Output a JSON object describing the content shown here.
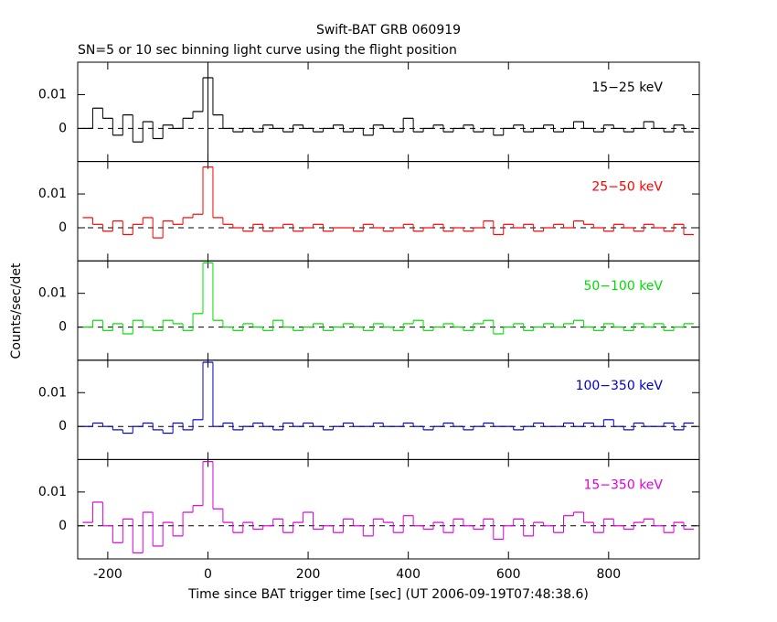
{
  "chart_data": {
    "type": "line",
    "title": "Swift-BAT GRB 060919",
    "subtitle": "SN=5 or 10 sec binning light curve using the flight position",
    "xlabel": "Time since BAT trigger time [sec] (UT 2006-09-19T07:48:38.6)",
    "ylabel": "Counts/sec/det",
    "xlim": [
      -260,
      981
    ],
    "xticks": [
      -200,
      0,
      200,
      400,
      600,
      800
    ],
    "ylim": [
      -0.0098,
      0.0196
    ],
    "yticks": [
      0,
      0.01
    ],
    "x": [
      -240,
      -220,
      -200,
      -180,
      -160,
      -140,
      -120,
      -100,
      -80,
      -60,
      -40,
      -20,
      0,
      20,
      40,
      60,
      80,
      100,
      120,
      140,
      160,
      180,
      200,
      220,
      240,
      260,
      280,
      300,
      320,
      340,
      360,
      380,
      400,
      420,
      440,
      460,
      480,
      500,
      520,
      540,
      560,
      580,
      600,
      620,
      640,
      660,
      680,
      700,
      720,
      740,
      760,
      780,
      800,
      820,
      840,
      860,
      880,
      900,
      920,
      940,
      960
    ],
    "series": [
      {
        "name": "15−25 keV",
        "color": "#000000",
        "values": [
          0.0,
          0.006,
          0.003,
          -0.002,
          0.004,
          -0.004,
          0.002,
          -0.003,
          0.001,
          0.0,
          0.003,
          0.005,
          0.015,
          0.004,
          0.0,
          -0.001,
          0.0,
          -0.001,
          0.001,
          0.0,
          -0.001,
          0.001,
          0.0,
          -0.001,
          0.0,
          0.001,
          -0.001,
          0.0,
          -0.002,
          0.001,
          0.0,
          -0.001,
          0.003,
          -0.001,
          0.0,
          0.001,
          -0.001,
          0.0,
          0.001,
          -0.001,
          0.0,
          -0.002,
          0.0,
          0.001,
          -0.001,
          0.0,
          0.001,
          -0.001,
          0.0,
          0.002,
          0.0,
          -0.001,
          0.001,
          0.0,
          -0.001,
          0.0,
          0.002,
          0.0,
          -0.001,
          0.001,
          -0.001
        ]
      },
      {
        "name": "25−50 keV",
        "color": "#ff0000",
        "values": [
          0.003,
          0.001,
          -0.001,
          0.002,
          -0.002,
          0.001,
          0.003,
          -0.003,
          0.002,
          0.001,
          0.003,
          0.004,
          0.018,
          0.003,
          0.001,
          0.0,
          -0.001,
          0.001,
          -0.001,
          0.0,
          0.001,
          -0.001,
          0.0,
          0.001,
          -0.001,
          0.0,
          0.0,
          -0.001,
          0.001,
          0.0,
          -0.001,
          0.0,
          0.001,
          -0.001,
          0.0,
          0.001,
          -0.001,
          0.0,
          -0.001,
          0.0,
          0.002,
          -0.002,
          0.001,
          0.0,
          0.001,
          -0.001,
          0.0,
          0.001,
          0.0,
          0.002,
          0.001,
          0.0,
          -0.001,
          0.001,
          0.0,
          -0.001,
          0.001,
          0.0,
          -0.001,
          0.001,
          -0.002
        ]
      },
      {
        "name": "50−100 keV",
        "color": "#00dd00",
        "values": [
          0.0,
          0.002,
          -0.001,
          0.001,
          -0.002,
          0.002,
          0.0,
          -0.001,
          0.002,
          0.001,
          -0.001,
          0.004,
          0.019,
          0.002,
          0.0,
          -0.001,
          0.001,
          0.0,
          -0.001,
          0.002,
          0.0,
          -0.001,
          0.0,
          0.001,
          -0.001,
          0.0,
          0.001,
          0.0,
          -0.001,
          0.001,
          0.0,
          -0.001,
          0.001,
          0.002,
          -0.001,
          0.0,
          0.001,
          0.0,
          -0.001,
          0.001,
          0.002,
          -0.002,
          0.0,
          0.001,
          -0.001,
          0.0,
          0.001,
          0.0,
          0.001,
          0.002,
          0.0,
          -0.001,
          0.001,
          0.0,
          -0.001,
          0.001,
          0.0,
          0.001,
          -0.001,
          0.0,
          0.001
        ]
      },
      {
        "name": "100−350 keV",
        "color": "#0000cc",
        "values": [
          0.0,
          0.001,
          0.0,
          -0.001,
          -0.002,
          0.0,
          0.001,
          -0.001,
          -0.002,
          0.001,
          -0.001,
          0.002,
          0.019,
          0.0,
          0.001,
          -0.001,
          0.0,
          0.001,
          0.0,
          -0.001,
          0.001,
          0.0,
          0.001,
          0.0,
          -0.001,
          0.0,
          0.001,
          0.0,
          0.0,
          0.001,
          0.0,
          0.0,
          0.001,
          0.0,
          -0.001,
          0.0,
          0.001,
          0.0,
          -0.001,
          0.0,
          0.001,
          0.0,
          0.0,
          -0.001,
          0.0,
          0.001,
          0.0,
          0.0,
          0.001,
          0.0,
          0.001,
          0.0,
          0.002,
          0.0,
          -0.001,
          0.001,
          0.0,
          0.0,
          0.001,
          -0.001,
          0.001
        ]
      },
      {
        "name": "15−350 keV",
        "color": "#dd00dd",
        "values": [
          0.001,
          0.007,
          0.0,
          -0.005,
          0.002,
          -0.008,
          0.004,
          -0.006,
          0.001,
          -0.003,
          0.004,
          0.006,
          0.019,
          0.005,
          0.001,
          -0.002,
          0.001,
          -0.001,
          0.0,
          0.002,
          -0.002,
          0.001,
          0.004,
          -0.001,
          0.0,
          -0.002,
          0.002,
          0.0,
          -0.003,
          0.002,
          0.001,
          -0.002,
          0.003,
          0.0,
          -0.001,
          0.001,
          -0.002,
          0.002,
          0.0,
          -0.001,
          0.002,
          -0.004,
          0.0,
          0.002,
          -0.003,
          0.001,
          0.0,
          -0.002,
          0.003,
          0.004,
          0.001,
          -0.002,
          0.002,
          0.0,
          -0.001,
          0.001,
          0.002,
          0.0,
          -0.002,
          0.001,
          -0.001
        ]
      }
    ]
  }
}
